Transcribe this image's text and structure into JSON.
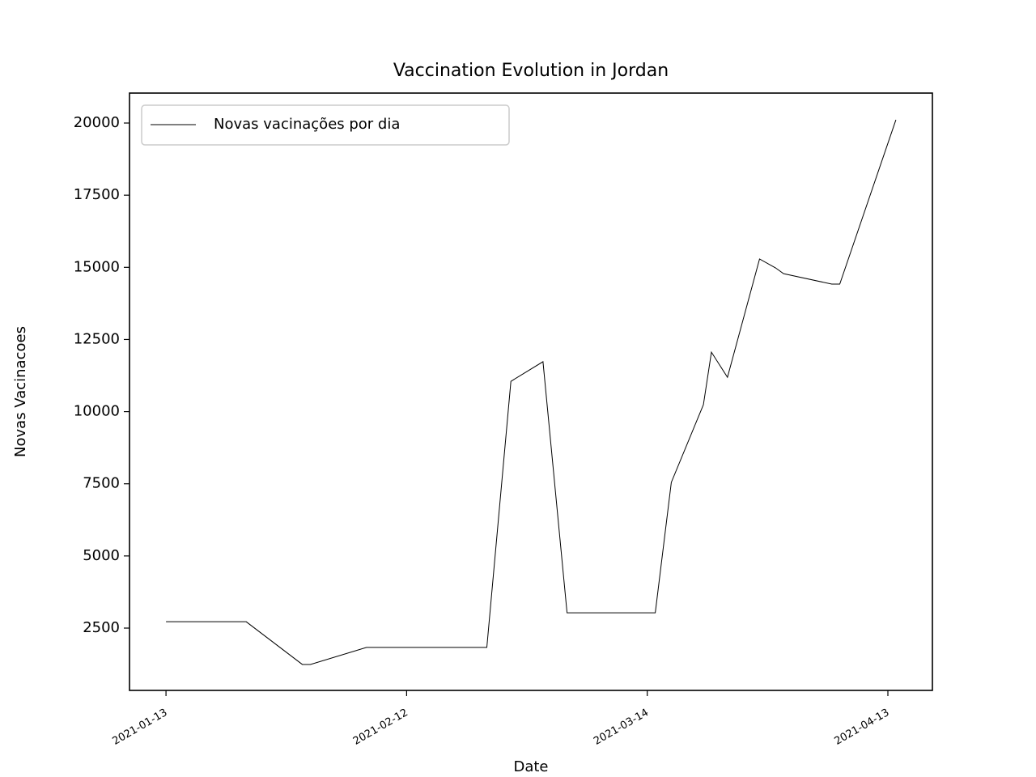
{
  "chart_data": {
    "type": "line",
    "title": "Vaccination Evolution in Jordan",
    "xlabel": "Date",
    "ylabel": "Novas Vacinacoes",
    "x": [
      "2021-01-13",
      "2021-01-23",
      "2021-01-30",
      "2021-01-31",
      "2021-02-07",
      "2021-02-22",
      "2021-02-25",
      "2021-03-01",
      "2021-03-04",
      "2021-03-15",
      "2021-03-17",
      "2021-03-21",
      "2021-03-22",
      "2021-03-24",
      "2021-03-28",
      "2021-03-30",
      "2021-03-31",
      "2021-04-06",
      "2021-04-07",
      "2021-04-14"
    ],
    "series": [
      {
        "name": "Novas vacinações por dia",
        "color": "#000000",
        "values": [
          2720,
          2720,
          1240,
          1240,
          1830,
          1830,
          11050,
          11730,
          3030,
          3030,
          7550,
          10240,
          12060,
          11190,
          15290,
          14980,
          14780,
          14420,
          14420,
          20110
        ]
      }
    ],
    "xlim": [
      "2021-01-08T10:48",
      "2021-04-18T13:12"
    ],
    "xticks": [
      "2021-01-13",
      "2021-02-12",
      "2021-03-14",
      "2021-04-13"
    ],
    "ylim": [
      341,
      21038
    ],
    "yticks": [
      2500,
      5000,
      7500,
      10000,
      12500,
      15000,
      17500,
      20000
    ],
    "legend": "upper left",
    "grid": false
  }
}
